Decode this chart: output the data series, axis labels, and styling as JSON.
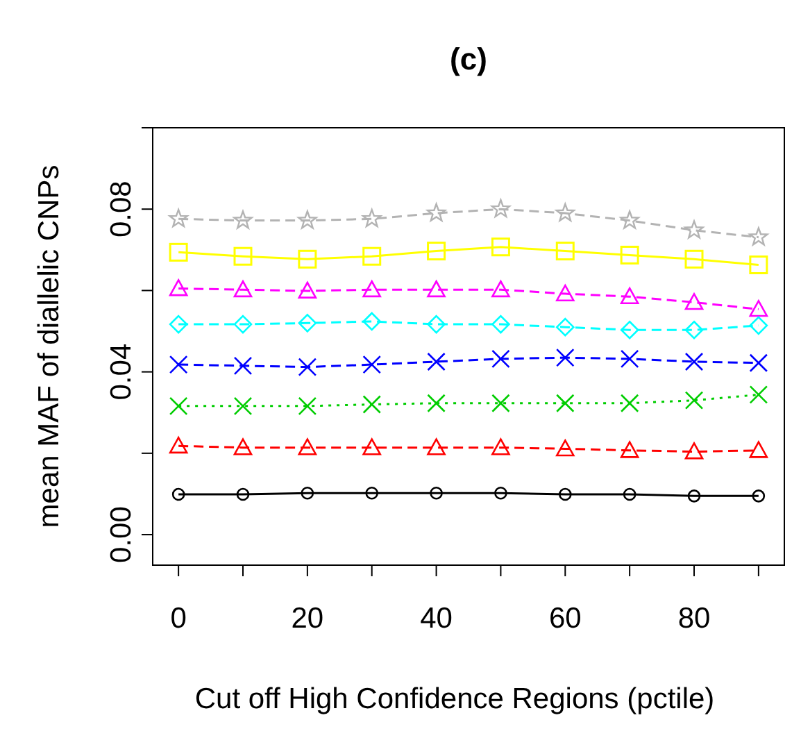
{
  "chart_data": {
    "type": "line",
    "title": "(c)",
    "xlabel": "Cut off High Confidence Regions (pctile)",
    "ylabel": "mean MAF of diallelic CNPs",
    "x": [
      0,
      10,
      20,
      30,
      40,
      50,
      60,
      70,
      80,
      90
    ],
    "xlim": [
      -4,
      94
    ],
    "xticks": [
      0,
      {
        "value": 10,
        "label": null
      },
      20,
      {
        "value": 30,
        "label": null
      },
      40,
      {
        "value": 50,
        "label": null
      },
      60,
      {
        "value": 70,
        "label": null
      },
      80,
      {
        "value": 90,
        "label": null
      }
    ],
    "ylim": [
      -0.0075,
      0.1
    ],
    "yticks": [
      {
        "value": 0,
        "label": "0.00"
      },
      {
        "value": 0.02,
        "label": null
      },
      {
        "value": 0.04,
        "label": "0.04"
      },
      {
        "value": 0.06,
        "label": null
      },
      {
        "value": 0.08,
        "label": "0.08"
      },
      {
        "value": 0.1,
        "label": null
      }
    ],
    "series": [
      {
        "color": "#b3b3b3",
        "marker": "star",
        "line_style": "dashed",
        "values": [
          0.0776,
          0.0772,
          0.0772,
          0.0776,
          0.079,
          0.08,
          0.079,
          0.0772,
          0.0748,
          0.0731
        ]
      },
      {
        "color": "#ffff00",
        "marker": "square",
        "line_style": "solid",
        "values": [
          0.0694,
          0.0684,
          0.0677,
          0.0684,
          0.0697,
          0.0707,
          0.0697,
          0.0687,
          0.0677,
          0.0663
        ]
      },
      {
        "color": "#ff00ff",
        "marker": "triangle",
        "line_style": "dashed",
        "values": [
          0.0605,
          0.0602,
          0.0599,
          0.0602,
          0.0602,
          0.0602,
          0.0592,
          0.0585,
          0.0571,
          0.0554
        ]
      },
      {
        "color": "#00ffff",
        "marker": "diamond",
        "line_style": "dashed",
        "values": [
          0.0517,
          0.0517,
          0.052,
          0.0524,
          0.0517,
          0.0517,
          0.051,
          0.0503,
          0.0503,
          0.0514
        ]
      },
      {
        "color": "#0000ff",
        "marker": "cross",
        "line_style": "dashed",
        "values": [
          0.0418,
          0.0415,
          0.0412,
          0.0418,
          0.0425,
          0.0432,
          0.0435,
          0.0432,
          0.0425,
          0.0422
        ]
      },
      {
        "color": "#00cd00",
        "marker": "cross",
        "line_style": "dotted",
        "values": [
          0.0316,
          0.0316,
          0.0316,
          0.032,
          0.0323,
          0.0323,
          0.0323,
          0.0323,
          0.033,
          0.0344
        ]
      },
      {
        "color": "#ff0000",
        "marker": "triangle",
        "line_style": "dashed",
        "values": [
          0.0218,
          0.0214,
          0.0214,
          0.0214,
          0.0214,
          0.0214,
          0.0211,
          0.0207,
          0.0204,
          0.0207
        ]
      },
      {
        "color": "#000000",
        "marker": "circle",
        "line_style": "solid",
        "values": [
          0.0099,
          0.0099,
          0.0102,
          0.0102,
          0.0102,
          0.0102,
          0.0099,
          0.0099,
          0.0095,
          0.0095
        ]
      }
    ]
  }
}
